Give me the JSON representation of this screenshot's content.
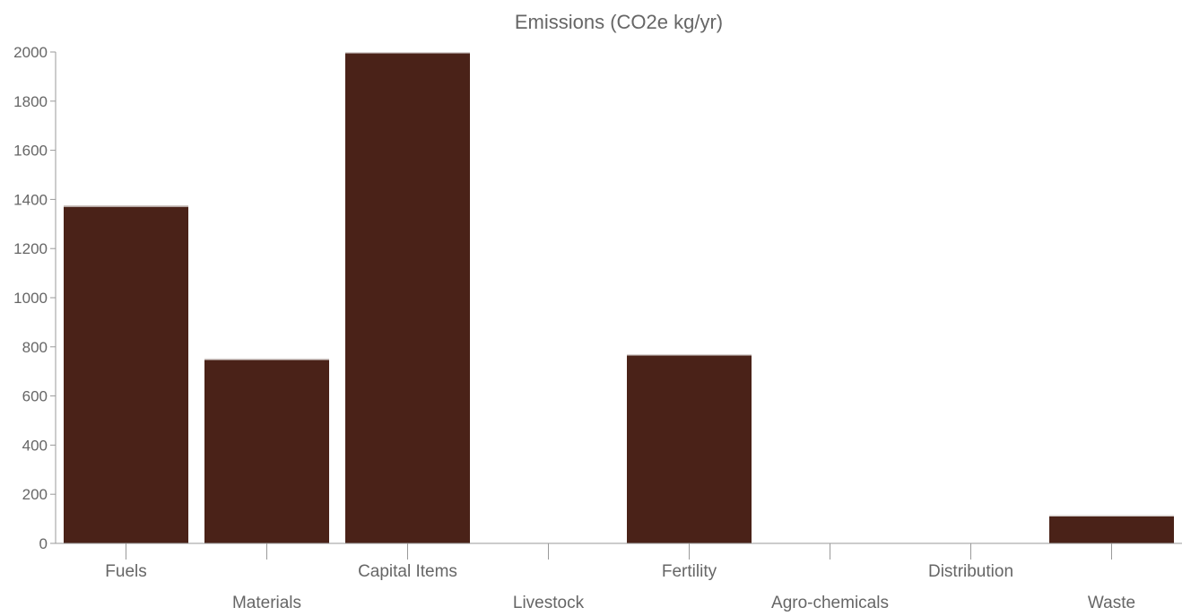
{
  "chart_data": {
    "type": "bar",
    "title": "Emissions (CO2e kg/yr)",
    "xlabel": "",
    "ylabel": "",
    "categories": [
      "Fuels",
      "Materials",
      "Capital Items",
      "Livestock",
      "Fertility",
      "Agro-chemicals",
      "Distribution",
      "Waste"
    ],
    "values": [
      1375,
      752,
      2000,
      0,
      770,
      0,
      0,
      115
    ],
    "ylim": [
      0,
      2000
    ],
    "yticks": [
      0,
      200,
      400,
      600,
      800,
      1000,
      1200,
      1400,
      1600,
      1800,
      2000
    ],
    "grid": false,
    "legend": "none",
    "bar_color": "#4a2218"
  }
}
